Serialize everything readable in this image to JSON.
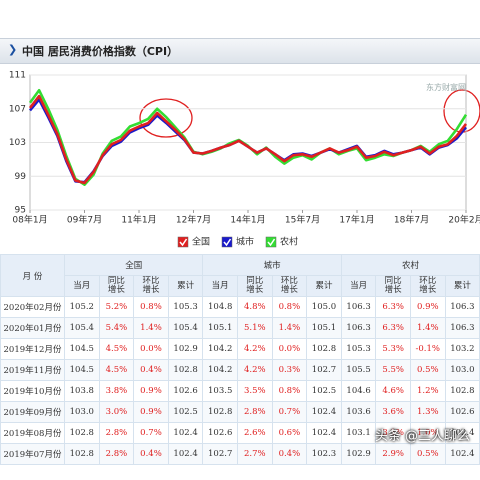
{
  "header": {
    "title": "中国 居民消费价格指数（CPI）"
  },
  "chart_data": {
    "type": "line",
    "categories": [
      "08年1月",
      null,
      null,
      null,
      null,
      null,
      "09年7月",
      null,
      null,
      null,
      null,
      null,
      "11年1月",
      null,
      null,
      null,
      null,
      null,
      "12年7月",
      null,
      null,
      null,
      null,
      null,
      "14年1月",
      null,
      null,
      null,
      null,
      null,
      "15年7月",
      null,
      null,
      null,
      null,
      null,
      "17年1月",
      null,
      null,
      null,
      null,
      null,
      "18年7月",
      null,
      null,
      null,
      null,
      null,
      "20年2月"
    ],
    "series": [
      {
        "name": "农村",
        "color": "#33dd33",
        "values": [
          107.7,
          109.2,
          107.0,
          104.5,
          101.4,
          98.7,
          98.0,
          99.2,
          101.7,
          103.2,
          103.7,
          104.9,
          105.3,
          105.8,
          107.0,
          106.0,
          104.8,
          103.6,
          101.9,
          101.6,
          101.9,
          102.3,
          102.9,
          103.3,
          102.6,
          101.6,
          102.4,
          101.3,
          100.5,
          101.2,
          101.5,
          101.0,
          101.8,
          102.3,
          101.6,
          102.0,
          102.3,
          100.9,
          101.2,
          101.6,
          101.4,
          101.8,
          102.1,
          102.6,
          101.9,
          102.8,
          103.2,
          104.6,
          106.3
        ]
      },
      {
        "name": "城市",
        "color": "#1a1acc",
        "values": [
          106.8,
          108.1,
          106.0,
          103.8,
          100.8,
          98.4,
          98.3,
          99.6,
          101.4,
          102.6,
          103.1,
          104.2,
          104.7,
          105.1,
          106.2,
          105.3,
          104.3,
          103.3,
          101.8,
          101.7,
          102.0,
          102.4,
          102.7,
          103.2,
          102.5,
          101.8,
          102.3,
          101.6,
          100.9,
          101.6,
          101.7,
          101.4,
          101.8,
          102.2,
          101.8,
          102.2,
          102.6,
          101.3,
          101.5,
          102.0,
          101.6,
          101.8,
          102.1,
          102.4,
          101.6,
          102.4,
          102.7,
          103.5,
          104.8
        ]
      },
      {
        "name": "全国",
        "color": "#e02020",
        "values": [
          107.1,
          108.5,
          106.3,
          104.0,
          101.0,
          98.5,
          98.2,
          99.5,
          101.5,
          102.8,
          103.3,
          104.4,
          104.9,
          105.3,
          106.5,
          105.5,
          104.5,
          103.4,
          101.8,
          101.7,
          102.0,
          102.4,
          102.7,
          103.2,
          102.5,
          101.8,
          102.3,
          101.6,
          100.8,
          101.5,
          101.6,
          101.3,
          101.8,
          102.3,
          101.8,
          102.1,
          102.5,
          101.2,
          101.4,
          101.9,
          101.5,
          101.8,
          102.1,
          102.5,
          101.7,
          102.5,
          102.8,
          103.8,
          105.2
        ]
      }
    ],
    "legend_order": [
      "全国",
      "城市",
      "农村"
    ],
    "ylim": [
      95,
      111
    ],
    "yticks": [
      95,
      99,
      103,
      107,
      111
    ],
    "grid": true,
    "watermark": "东方财富网"
  },
  "table": {
    "corner": "月 份",
    "groups": [
      "全国",
      "城市",
      "农村"
    ],
    "subheaders": [
      "当月",
      "同比增长",
      "环比增长",
      "累计"
    ],
    "rows": [
      [
        "2020年02月份",
        "105.2",
        "5.2%",
        "0.8%",
        "105.3",
        "104.8",
        "4.8%",
        "0.8%",
        "105.0",
        "106.3",
        "6.3%",
        "0.9%",
        "106.3"
      ],
      [
        "2020年01月份",
        "105.4",
        "5.4%",
        "1.4%",
        "105.4",
        "105.1",
        "5.1%",
        "1.4%",
        "105.1",
        "106.3",
        "6.3%",
        "1.4%",
        "106.3"
      ],
      [
        "2019年12月份",
        "104.5",
        "4.5%",
        "0.0%",
        "102.9",
        "104.2",
        "4.2%",
        "0.0%",
        "102.8",
        "105.3",
        "5.3%",
        "-0.1%",
        "103.2"
      ],
      [
        "2019年11月份",
        "104.5",
        "4.5%",
        "0.4%",
        "102.8",
        "104.2",
        "4.2%",
        "0.3%",
        "102.7",
        "105.5",
        "5.5%",
        "0.5%",
        "103.0"
      ],
      [
        "2019年10月份",
        "103.8",
        "3.8%",
        "0.9%",
        "102.6",
        "103.5",
        "3.5%",
        "0.8%",
        "102.5",
        "104.6",
        "4.6%",
        "1.2%",
        "102.8"
      ],
      [
        "2019年09月份",
        "103.0",
        "3.0%",
        "0.9%",
        "102.5",
        "102.8",
        "2.8%",
        "0.7%",
        "102.4",
        "103.6",
        "3.6%",
        "1.3%",
        "102.6"
      ],
      [
        "2019年08月份",
        "102.8",
        "2.8%",
        "0.7%",
        "102.4",
        "102.6",
        "2.6%",
        "0.6%",
        "102.4",
        "103.1",
        "3.1%",
        "1.0%",
        "102.4"
      ],
      [
        "2019年07月份",
        "102.8",
        "2.8%",
        "0.4%",
        "102.4",
        "102.7",
        "2.7%",
        "0.4%",
        "102.3",
        "102.9",
        "2.9%",
        "0.5%",
        "102.4"
      ]
    ]
  },
  "watermark": "头条 @三人聊么"
}
